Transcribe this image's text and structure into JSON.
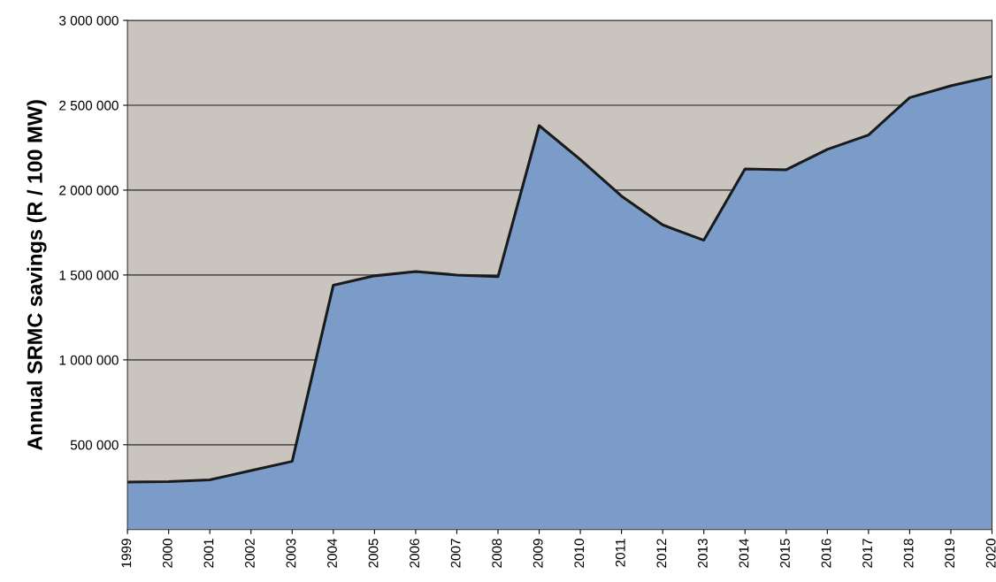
{
  "chart_data": {
    "type": "area",
    "ylabel": "Annual SRMC savings (R / 100 MW)",
    "categories": [
      "1999",
      "2000",
      "2001",
      "2002",
      "2003",
      "2004",
      "2005",
      "2006",
      "2007",
      "2008",
      "2009",
      "2010",
      "2011",
      "2012",
      "2013",
      "2014",
      "2015",
      "2016",
      "2017",
      "2018",
      "2019",
      "2020"
    ],
    "series": [
      {
        "color": "#7b9cc8",
        "values": [
          280000,
          283000,
          293000,
          348000,
          402000,
          1440000,
          1495000,
          1520000,
          1500000,
          1490000,
          2380000,
          2180000,
          1965000,
          1795000,
          1705000,
          2125000,
          2120000,
          2240000,
          2325000,
          2545000,
          2615000,
          2670000
        ]
      }
    ],
    "ylim": [
      0,
      3000000
    ],
    "yticks": [
      {
        "value": 500000,
        "label": "500 000"
      },
      {
        "value": 1000000,
        "label": "1 000 000"
      },
      {
        "value": 1500000,
        "label": "1 500 000"
      },
      {
        "value": 2000000,
        "label": "2 000 000"
      },
      {
        "value": 2500000,
        "label": "2 500 000"
      },
      {
        "value": 3000000,
        "label": "3 000 000"
      }
    ],
    "grid": "y",
    "legend": false,
    "marker": "none",
    "line_style": "solid"
  }
}
